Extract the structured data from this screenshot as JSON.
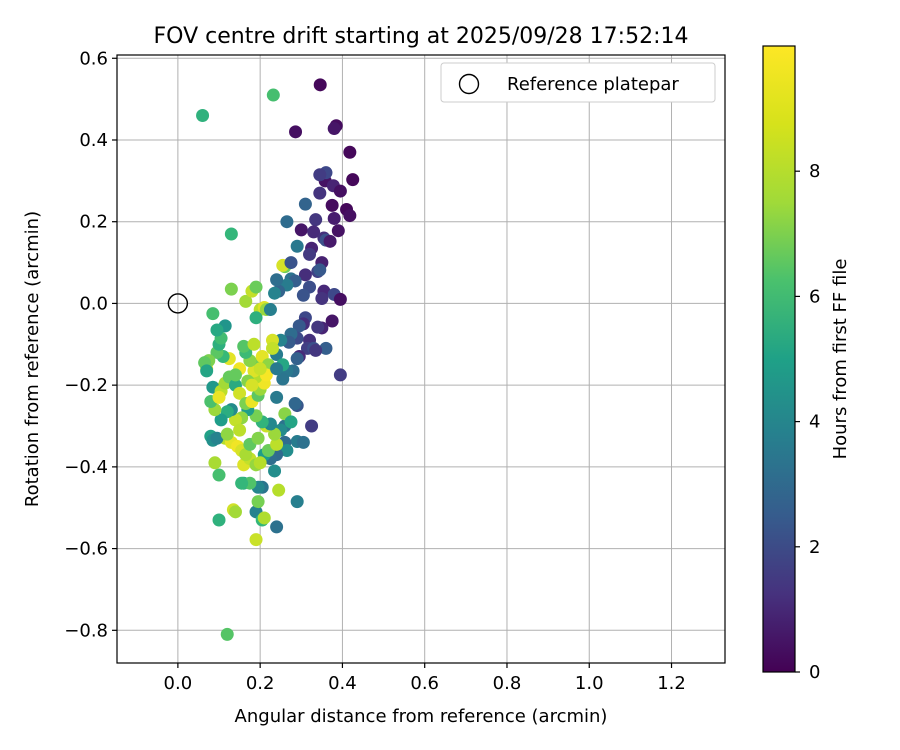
{
  "chart_data": {
    "type": "scatter",
    "title": "FOV centre drift starting at 2025/09/28 17:52:14",
    "xlabel": "Angular distance from reference (arcmin)",
    "ylabel": "Rotation from reference (arcmin)",
    "xlim": [
      -0.148,
      1.33
    ],
    "ylim": [
      -0.88,
      0.608
    ],
    "xticks": [
      0.0,
      0.2,
      0.4,
      0.6,
      0.8,
      1.0,
      1.2
    ],
    "xtick_labels": [
      "0.0",
      "0.2",
      "0.4",
      "0.6",
      "0.8",
      "1.0",
      "1.2"
    ],
    "yticks": [
      -0.8,
      -0.6,
      -0.4,
      -0.2,
      0.0,
      0.2,
      0.4,
      0.6
    ],
    "ytick_labels": [
      "−0.8",
      "−0.6",
      "−0.4",
      "−0.2",
      "0.0",
      "0.2",
      "0.4",
      "0.6"
    ],
    "grid": true,
    "legend": {
      "position": "top-right",
      "entries": [
        "Reference platepar"
      ]
    },
    "reference_point": {
      "x": 0.0,
      "y": 0.0,
      "label": "Reference platepar"
    },
    "colorbar": {
      "label": "Hours from first FF file",
      "colormap": "viridis",
      "range": [
        0,
        10
      ],
      "ticks": [
        0,
        2,
        4,
        6,
        8
      ],
      "tick_labels": [
        "0",
        "2",
        "4",
        "6",
        "8"
      ]
    },
    "points": [
      [
        0.346,
        0.535,
        0.2
      ],
      [
        0.286,
        0.42,
        0.4
      ],
      [
        0.385,
        0.435,
        0.3
      ],
      [
        0.38,
        0.428,
        0.6
      ],
      [
        0.418,
        0.37,
        0.2
      ],
      [
        0.358,
        0.3,
        0.5
      ],
      [
        0.378,
        0.288,
        1.0
      ],
      [
        0.425,
        0.303,
        0.2
      ],
      [
        0.395,
        0.275,
        0.4
      ],
      [
        0.345,
        0.27,
        1.5
      ],
      [
        0.36,
        0.32,
        2.2
      ],
      [
        0.345,
        0.315,
        1.8
      ],
      [
        0.375,
        0.24,
        0.3
      ],
      [
        0.41,
        0.23,
        0.2
      ],
      [
        0.418,
        0.215,
        0.4
      ],
      [
        0.335,
        0.205,
        1.6
      ],
      [
        0.38,
        0.208,
        0.8
      ],
      [
        0.3,
        0.18,
        0.6
      ],
      [
        0.33,
        0.175,
        1.2
      ],
      [
        0.39,
        0.178,
        0.5
      ],
      [
        0.355,
        0.16,
        1.4
      ],
      [
        0.36,
        0.155,
        2.5
      ],
      [
        0.37,
        0.152,
        0.7
      ],
      [
        0.325,
        0.135,
        1.0
      ],
      [
        0.32,
        0.12,
        1.7
      ],
      [
        0.35,
        0.1,
        0.9
      ],
      [
        0.34,
        0.078,
        2.0
      ],
      [
        0.345,
        0.082,
        2.8
      ],
      [
        0.31,
        0.07,
        1.3
      ],
      [
        0.275,
        0.06,
        3.8
      ],
      [
        0.285,
        0.055,
        3.0
      ],
      [
        0.265,
        0.045,
        4.2
      ],
      [
        0.32,
        0.04,
        2.4
      ],
      [
        0.355,
        0.03,
        1.1
      ],
      [
        0.38,
        0.022,
        2.2
      ],
      [
        0.395,
        0.01,
        0.4
      ],
      [
        0.35,
        0.012,
        1.5
      ],
      [
        0.305,
        0.02,
        2.6
      ],
      [
        0.245,
        0.03,
        3.2
      ],
      [
        0.265,
        0.2,
        3.5
      ],
      [
        0.31,
        0.243,
        3.2
      ],
      [
        0.29,
        0.14,
        4.0
      ],
      [
        0.26,
        0.09,
        7.8
      ],
      [
        0.24,
        0.058,
        3.6
      ],
      [
        0.255,
        0.093,
        9.4
      ],
      [
        0.275,
        0.1,
        2.6
      ],
      [
        0.235,
        0.025,
        4.5
      ],
      [
        0.375,
        -0.043,
        0.6
      ],
      [
        0.35,
        -0.06,
        1.0
      ],
      [
        0.34,
        -0.058,
        1.6
      ],
      [
        0.31,
        -0.035,
        2.2
      ],
      [
        0.305,
        -0.05,
        1.3
      ],
      [
        0.295,
        -0.055,
        2.8
      ],
      [
        0.32,
        -0.09,
        1.4
      ],
      [
        0.29,
        -0.085,
        2.3
      ],
      [
        0.275,
        -0.075,
        3.5
      ],
      [
        0.27,
        -0.095,
        2.9
      ],
      [
        0.315,
        -0.11,
        1.9
      ],
      [
        0.33,
        -0.11,
        2.4
      ],
      [
        0.36,
        -0.11,
        3.0
      ],
      [
        0.335,
        -0.115,
        1.6
      ],
      [
        0.395,
        -0.175,
        1.8
      ],
      [
        0.295,
        -0.13,
        1.2
      ],
      [
        0.29,
        -0.135,
        3.1
      ],
      [
        0.28,
        -0.165,
        3.6
      ],
      [
        0.265,
        -0.165,
        4.0
      ],
      [
        0.25,
        -0.09,
        4.5
      ],
      [
        0.23,
        -0.09,
        9.4
      ],
      [
        0.24,
        -0.125,
        4.2
      ],
      [
        0.255,
        -0.185,
        3.9
      ],
      [
        0.29,
        -0.25,
        2.7
      ],
      [
        0.325,
        -0.3,
        1.8
      ],
      [
        0.29,
        -0.338,
        4.2
      ],
      [
        0.305,
        -0.34,
        3.7
      ],
      [
        0.26,
        -0.3,
        3.8
      ],
      [
        0.24,
        -0.23,
        4.1
      ],
      [
        0.25,
        -0.31,
        4.8
      ],
      [
        0.26,
        -0.34,
        3.5
      ],
      [
        0.265,
        -0.36,
        4.9
      ],
      [
        0.24,
        -0.37,
        3.4
      ],
      [
        0.225,
        -0.38,
        3.6
      ],
      [
        0.21,
        -0.37,
        5.5
      ],
      [
        0.29,
        -0.485,
        4.3
      ],
      [
        0.24,
        -0.547,
        3.7
      ],
      [
        0.205,
        -0.45,
        3.9
      ],
      [
        0.195,
        -0.45,
        4.6
      ],
      [
        0.19,
        -0.51,
        4.4
      ],
      [
        0.205,
        -0.53,
        6.6
      ],
      [
        0.245,
        -0.457,
        8.9
      ],
      [
        0.21,
        -0.525,
        8.8
      ],
      [
        0.19,
        -0.578,
        9.2
      ],
      [
        0.195,
        -0.485,
        7.9
      ],
      [
        0.135,
        -0.505,
        9.3
      ],
      [
        0.14,
        -0.51,
        8.6
      ],
      [
        0.1,
        -0.53,
        6.4
      ],
      [
        0.12,
        -0.81,
        7.3
      ],
      [
        0.1,
        -0.42,
        7.0
      ],
      [
        0.09,
        -0.39,
        8.7
      ],
      [
        0.16,
        -0.44,
        6.0
      ],
      [
        0.175,
        -0.44,
        7.2
      ],
      [
        0.155,
        -0.44,
        6.6
      ],
      [
        0.16,
        -0.395,
        9.5
      ],
      [
        0.175,
        -0.38,
        9.1
      ],
      [
        0.19,
        -0.395,
        8.4
      ],
      [
        0.2,
        -0.39,
        8.9
      ],
      [
        0.22,
        -0.36,
        7.7
      ],
      [
        0.24,
        -0.345,
        9.0
      ],
      [
        0.235,
        -0.32,
        8.5
      ],
      [
        0.26,
        -0.27,
        8.2
      ],
      [
        0.275,
        -0.29,
        5.8
      ],
      [
        0.285,
        -0.245,
        3.3
      ],
      [
        0.115,
        -0.33,
        8.9
      ],
      [
        0.13,
        -0.34,
        9.6
      ],
      [
        0.145,
        -0.35,
        9.8
      ],
      [
        0.155,
        -0.36,
        9.4
      ],
      [
        0.165,
        -0.37,
        8.7
      ],
      [
        0.175,
        -0.345,
        7.5
      ],
      [
        0.195,
        -0.33,
        8.1
      ],
      [
        0.215,
        -0.3,
        9.2
      ],
      [
        0.225,
        -0.295,
        4.7
      ],
      [
        0.205,
        -0.29,
        6.5
      ],
      [
        0.19,
        -0.275,
        7.9
      ],
      [
        0.17,
        -0.26,
        5.6
      ],
      [
        0.155,
        -0.28,
        8.3
      ],
      [
        0.14,
        -0.285,
        9.1
      ],
      [
        0.13,
        -0.26,
        4.8
      ],
      [
        0.12,
        -0.265,
        6.2
      ],
      [
        0.105,
        -0.285,
        5.5
      ],
      [
        0.09,
        -0.26,
        8.5
      ],
      [
        0.08,
        -0.325,
        5.7
      ],
      [
        0.085,
        -0.335,
        5.0
      ],
      [
        0.095,
        -0.33,
        4.5
      ],
      [
        0.08,
        -0.24,
        7.1
      ],
      [
        0.1,
        -0.21,
        8.8
      ],
      [
        0.085,
        -0.205,
        5.3
      ],
      [
        0.105,
        -0.215,
        9.0
      ],
      [
        0.1,
        -0.23,
        9.7
      ],
      [
        0.115,
        -0.195,
        8.6
      ],
      [
        0.125,
        -0.18,
        7.6
      ],
      [
        0.14,
        -0.2,
        6.1
      ],
      [
        0.15,
        -0.22,
        9.3
      ],
      [
        0.165,
        -0.245,
        8.0
      ],
      [
        0.18,
        -0.24,
        9.7
      ],
      [
        0.195,
        -0.225,
        7.4
      ],
      [
        0.2,
        -0.21,
        8.5
      ],
      [
        0.21,
        -0.195,
        9.8
      ],
      [
        0.19,
        -0.18,
        8.9
      ],
      [
        0.185,
        -0.165,
        9.5
      ],
      [
        0.2,
        -0.145,
        7.8
      ],
      [
        0.175,
        -0.14,
        8.2
      ],
      [
        0.165,
        -0.12,
        6.8
      ],
      [
        0.16,
        -0.105,
        7.3
      ],
      [
        0.185,
        -0.1,
        9.0
      ],
      [
        0.205,
        -0.13,
        9.6
      ],
      [
        0.22,
        -0.15,
        8.3
      ],
      [
        0.215,
        -0.175,
        9.9
      ],
      [
        0.23,
        -0.11,
        9.1
      ],
      [
        0.255,
        -0.15,
        5.9
      ],
      [
        0.24,
        -0.16,
        4.1
      ],
      [
        0.125,
        -0.135,
        9.6
      ],
      [
        0.11,
        -0.13,
        6.7
      ],
      [
        0.095,
        -0.12,
        7.4
      ],
      [
        0.1,
        -0.1,
        6.3
      ],
      [
        0.105,
        -0.085,
        6.9
      ],
      [
        0.115,
        -0.055,
        5.2
      ],
      [
        0.095,
        -0.065,
        6.0
      ],
      [
        0.085,
        -0.025,
        7.0
      ],
      [
        0.07,
        -0.16,
        9.5
      ],
      [
        0.075,
        -0.14,
        8.0
      ],
      [
        0.065,
        -0.145,
        7.5
      ],
      [
        0.07,
        -0.165,
        5.8
      ],
      [
        0.06,
        0.46,
        6.4
      ],
      [
        0.232,
        0.51,
        7.0
      ],
      [
        0.13,
        0.17,
        6.6
      ],
      [
        0.13,
        0.035,
        8.0
      ],
      [
        0.165,
        0.005,
        8.6
      ],
      [
        0.18,
        0.03,
        9.1
      ],
      [
        0.19,
        0.04,
        7.7
      ],
      [
        0.2,
        -0.015,
        9.0
      ],
      [
        0.21,
        -0.01,
        9.5
      ],
      [
        0.215,
        -0.015,
        8.4
      ],
      [
        0.19,
        -0.035,
        6.3
      ],
      [
        0.225,
        -0.015,
        4.3
      ],
      [
        0.15,
        -0.16,
        9.8
      ],
      [
        0.2,
        -0.16,
        9.2
      ],
      [
        0.17,
        -0.19,
        8.1
      ],
      [
        0.14,
        -0.175,
        7.6
      ],
      [
        0.18,
        -0.2,
        9.4
      ],
      [
        0.12,
        -0.32,
        8.3
      ],
      [
        0.15,
        -0.31,
        9.0
      ],
      [
        0.235,
        -0.41,
        4.9
      ]
    ]
  }
}
